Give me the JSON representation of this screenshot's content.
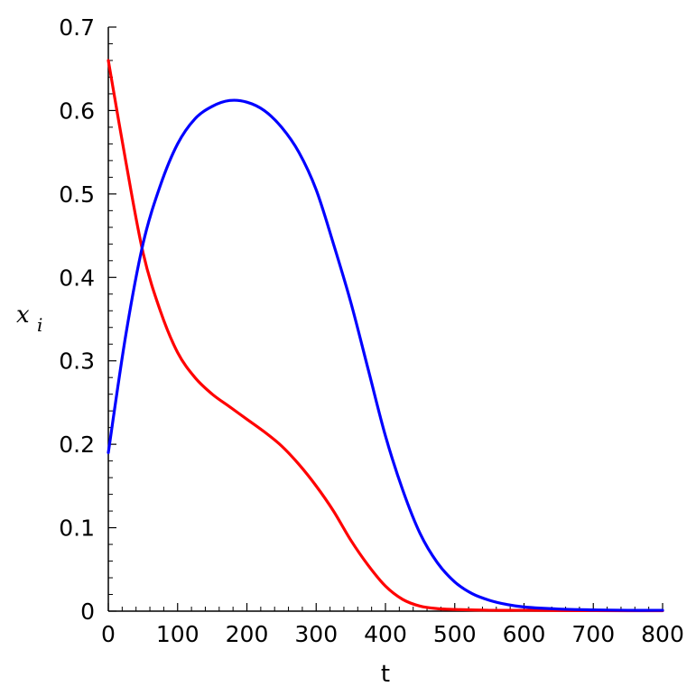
{
  "chart_data": {
    "type": "line",
    "title": "",
    "xlabel": "t",
    "ylabel": {
      "base": "x",
      "subscript": "i"
    },
    "xlim": [
      0,
      800
    ],
    "ylim": [
      0,
      0.7
    ],
    "grid": false,
    "x_ticks": [
      0,
      100,
      200,
      300,
      400,
      500,
      600,
      700,
      800
    ],
    "x_tick_labels": [
      "0",
      "100",
      "200",
      "300",
      "400",
      "500",
      "600",
      "700",
      "800"
    ],
    "y_ticks": [
      0,
      0.1,
      0.2,
      0.3,
      0.4,
      0.5,
      0.6,
      0.7
    ],
    "y_tick_labels": [
      "0",
      "0.1",
      "0.2",
      "0.3",
      "0.4",
      "0.5",
      "0.6",
      "0.7"
    ],
    "series": [
      {
        "color": "#ff0000",
        "x": [
          0,
          25,
          50,
          75,
          100,
          125,
          150,
          175,
          200,
          225,
          250,
          275,
          300,
          325,
          350,
          375,
          400,
          425,
          450,
          475,
          500,
          550,
          600,
          650,
          700,
          750,
          800
        ],
        "y": [
          0.66,
          0.54,
          0.43,
          0.36,
          0.31,
          0.28,
          0.26,
          0.245,
          0.23,
          0.215,
          0.198,
          0.176,
          0.15,
          0.12,
          0.085,
          0.055,
          0.03,
          0.014,
          0.006,
          0.003,
          0.002,
          0.001,
          0.001,
          0.0008,
          0.0006,
          0.0005,
          0.0005
        ]
      },
      {
        "color": "#0000ff",
        "x": [
          0,
          25,
          50,
          75,
          100,
          125,
          150,
          175,
          200,
          225,
          250,
          275,
          300,
          325,
          350,
          375,
          400,
          425,
          450,
          475,
          500,
          525,
          550,
          575,
          600,
          650,
          700,
          750,
          800
        ],
        "y": [
          0.19,
          0.33,
          0.44,
          0.51,
          0.56,
          0.59,
          0.605,
          0.612,
          0.61,
          0.6,
          0.58,
          0.55,
          0.505,
          0.44,
          0.37,
          0.29,
          0.21,
          0.145,
          0.093,
          0.058,
          0.035,
          0.021,
          0.013,
          0.008,
          0.005,
          0.0025,
          0.0015,
          0.001,
          0.001
        ]
      }
    ]
  }
}
